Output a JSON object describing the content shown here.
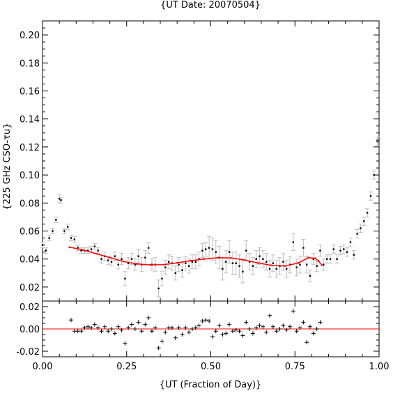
{
  "chart_data": [
    {
      "type": "scatter",
      "title": "{UT Date: 20070504}",
      "ylabel": "{225 GHz CSO-τu}",
      "xlim": [
        0.0,
        1.0
      ],
      "ylim": [
        0.01,
        0.21
      ],
      "y_ticks": [
        "0.02",
        "0.04",
        "0.06",
        "0.08",
        "0.10",
        "0.12",
        "0.14",
        "0.16",
        "0.18",
        "0.20"
      ],
      "y_tick_values": [
        0.02,
        0.04,
        0.06,
        0.08,
        0.1,
        0.12,
        0.14,
        0.16,
        0.18,
        0.2
      ],
      "grid": false,
      "colors": {
        "points": "#000000",
        "error_bars": "#bdbdbd",
        "fit": "#ff0000"
      },
      "series": [
        {
          "kind": "points-with-errorbars",
          "x": [
            0.0,
            0.01,
            0.02,
            0.03,
            0.04,
            0.05,
            0.055,
            0.065,
            0.075,
            0.085,
            0.095,
            0.105,
            0.115,
            0.125,
            0.135,
            0.145,
            0.155,
            0.165,
            0.175,
            0.185,
            0.195,
            0.205,
            0.215,
            0.225,
            0.235,
            0.245,
            0.255,
            0.265,
            0.275,
            0.285,
            0.295,
            0.305,
            0.315,
            0.325,
            0.335,
            0.345,
            0.355,
            0.365,
            0.375,
            0.385,
            0.395,
            0.405,
            0.415,
            0.425,
            0.435,
            0.445,
            0.455,
            0.465,
            0.475,
            0.485,
            0.495,
            0.505,
            0.515,
            0.525,
            0.535,
            0.545,
            0.555,
            0.565,
            0.575,
            0.585,
            0.595,
            0.605,
            0.615,
            0.625,
            0.635,
            0.645,
            0.655,
            0.665,
            0.675,
            0.685,
            0.695,
            0.705,
            0.715,
            0.725,
            0.735,
            0.745,
            0.755,
            0.765,
            0.775,
            0.785,
            0.795,
            0.805,
            0.815,
            0.825,
            0.835,
            0.845,
            0.855,
            0.865,
            0.875,
            0.885,
            0.895,
            0.905,
            0.915,
            0.925,
            0.935,
            0.945,
            0.955,
            0.965,
            0.975,
            0.985,
            0.995
          ],
          "y": [
            0.05,
            0.046,
            0.055,
            0.06,
            0.068,
            0.083,
            0.082,
            0.06,
            0.063,
            0.055,
            0.054,
            0.048,
            0.046,
            0.046,
            0.046,
            0.047,
            0.049,
            0.046,
            0.04,
            0.042,
            0.039,
            0.038,
            0.042,
            0.036,
            0.04,
            0.026,
            0.037,
            0.04,
            0.036,
            0.042,
            0.036,
            0.041,
            0.048,
            0.036,
            0.036,
            0.019,
            0.026,
            0.034,
            0.038,
            0.037,
            0.03,
            0.036,
            0.032,
            0.037,
            0.035,
            0.038,
            0.038,
            0.04,
            0.046,
            0.047,
            0.048,
            0.047,
            0.045,
            0.041,
            0.033,
            0.038,
            0.045,
            0.037,
            0.037,
            0.035,
            0.031,
            0.046,
            0.038,
            0.035,
            0.04,
            0.042,
            0.04,
            0.038,
            0.033,
            0.037,
            0.033,
            0.035,
            0.038,
            0.033,
            0.036,
            0.052,
            0.034,
            0.036,
            0.048,
            0.036,
            0.028,
            0.04,
            0.035,
            0.046,
            0.036,
            0.04,
            0.04,
            0.047,
            0.04,
            0.046,
            0.047,
            0.045,
            0.052,
            0.043,
            0.058,
            0.062,
            0.067,
            0.073,
            0.085,
            0.1,
            0.124
          ],
          "err": [
            0.002,
            0.002,
            0.002,
            0.002,
            0.002,
            0.003,
            0.002,
            0.002,
            0.002,
            0.002,
            0.002,
            0.002,
            0.002,
            0.002,
            0.002,
            0.002,
            0.002,
            0.002,
            0.003,
            0.003,
            0.003,
            0.003,
            0.003,
            0.003,
            0.004,
            0.005,
            0.004,
            0.004,
            0.004,
            0.005,
            0.005,
            0.005,
            0.004,
            0.004,
            0.005,
            0.006,
            0.005,
            0.005,
            0.005,
            0.005,
            0.005,
            0.005,
            0.005,
            0.005,
            0.005,
            0.005,
            0.005,
            0.005,
            0.005,
            0.005,
            0.008,
            0.008,
            0.008,
            0.008,
            0.008,
            0.008,
            0.008,
            0.008,
            0.008,
            0.008,
            0.008,
            0.007,
            0.006,
            0.006,
            0.006,
            0.006,
            0.006,
            0.006,
            0.006,
            0.006,
            0.006,
            0.006,
            0.006,
            0.006,
            0.006,
            0.006,
            0.006,
            0.006,
            0.006,
            0.006,
            0.004,
            0.004,
            0.004,
            0.004,
            0.004,
            0.003,
            0.003,
            0.003,
            0.003,
            0.003,
            0.003,
            0.003,
            0.003,
            0.003,
            0.003,
            0.003,
            0.003,
            0.003,
            0.003,
            0.003,
            0.003
          ]
        },
        {
          "kind": "fit-line",
          "x": [
            0.08,
            0.12,
            0.16,
            0.2,
            0.24,
            0.28,
            0.32,
            0.36,
            0.4,
            0.44,
            0.48,
            0.52,
            0.56,
            0.6,
            0.64,
            0.68,
            0.72,
            0.76,
            0.79,
            0.81,
            0.82,
            0.83
          ],
          "y": [
            0.0485,
            0.0465,
            0.0438,
            0.041,
            0.0383,
            0.0365,
            0.0358,
            0.036,
            0.0373,
            0.0388,
            0.04,
            0.0409,
            0.0408,
            0.0393,
            0.0372,
            0.0355,
            0.035,
            0.0372,
            0.041,
            0.0405,
            0.0385,
            0.0355
          ]
        }
      ]
    },
    {
      "type": "scatter",
      "xlabel": "{UT (Fraction of Day)}",
      "xlim": [
        0.0,
        1.0
      ],
      "ylim": [
        -0.025,
        0.025
      ],
      "x_ticks": [
        "0.00",
        "0.25",
        "0.50",
        "0.75",
        "1.00"
      ],
      "x_tick_values": [
        0.0,
        0.25,
        0.5,
        0.75,
        1.0
      ],
      "y_ticks": [
        "-0.02",
        "0.00",
        "0.02"
      ],
      "y_tick_values": [
        -0.02,
        0.0,
        0.02
      ],
      "reference_line": 0.0,
      "colors": {
        "points": "#000000",
        "zero_line": "#ff0000"
      },
      "series": [
        {
          "kind": "residuals",
          "x": [
            0.085,
            0.095,
            0.105,
            0.115,
            0.125,
            0.135,
            0.145,
            0.155,
            0.165,
            0.175,
            0.185,
            0.195,
            0.205,
            0.215,
            0.225,
            0.235,
            0.245,
            0.255,
            0.265,
            0.275,
            0.285,
            0.295,
            0.305,
            0.315,
            0.325,
            0.335,
            0.345,
            0.355,
            0.365,
            0.375,
            0.385,
            0.395,
            0.405,
            0.415,
            0.425,
            0.435,
            0.445,
            0.455,
            0.465,
            0.475,
            0.485,
            0.495,
            0.505,
            0.515,
            0.525,
            0.535,
            0.545,
            0.555,
            0.565,
            0.575,
            0.585,
            0.595,
            0.605,
            0.615,
            0.625,
            0.635,
            0.645,
            0.655,
            0.665,
            0.675,
            0.685,
            0.695,
            0.705,
            0.715,
            0.725,
            0.735,
            0.745,
            0.755,
            0.765,
            0.775,
            0.785,
            0.795,
            0.805,
            0.815,
            0.825
          ],
          "y": [
            0.008,
            -0.002,
            -0.002,
            -0.002,
            0.001,
            0.002,
            0.001,
            0.004,
            0.001,
            -0.002,
            0.002,
            -0.002,
            0.0,
            -0.004,
            0.002,
            -0.001,
            -0.013,
            0.001,
            0.004,
            0.0,
            0.006,
            -0.002,
            0.004,
            0.01,
            -0.002,
            0.001,
            -0.017,
            -0.011,
            -0.003,
            0.001,
            0.001,
            -0.008,
            0.001,
            -0.005,
            0.001,
            -0.003,
            0.0,
            0.001,
            0.003,
            0.007,
            0.008,
            0.007,
            -0.007,
            -0.002,
            0.003,
            -0.005,
            -0.004,
            0.004,
            -0.002,
            -0.001,
            -0.002,
            -0.006,
            0.006,
            0.0,
            -0.004,
            0.001,
            0.003,
            0.002,
            -0.003,
            0.012,
            0.002,
            -0.002,
            0.0,
            0.003,
            -0.001,
            0.002,
            0.016,
            -0.002,
            0.001,
            0.006,
            -0.012,
            0.002,
            -0.004,
            0.0,
            0.006
          ]
        }
      ]
    }
  ]
}
